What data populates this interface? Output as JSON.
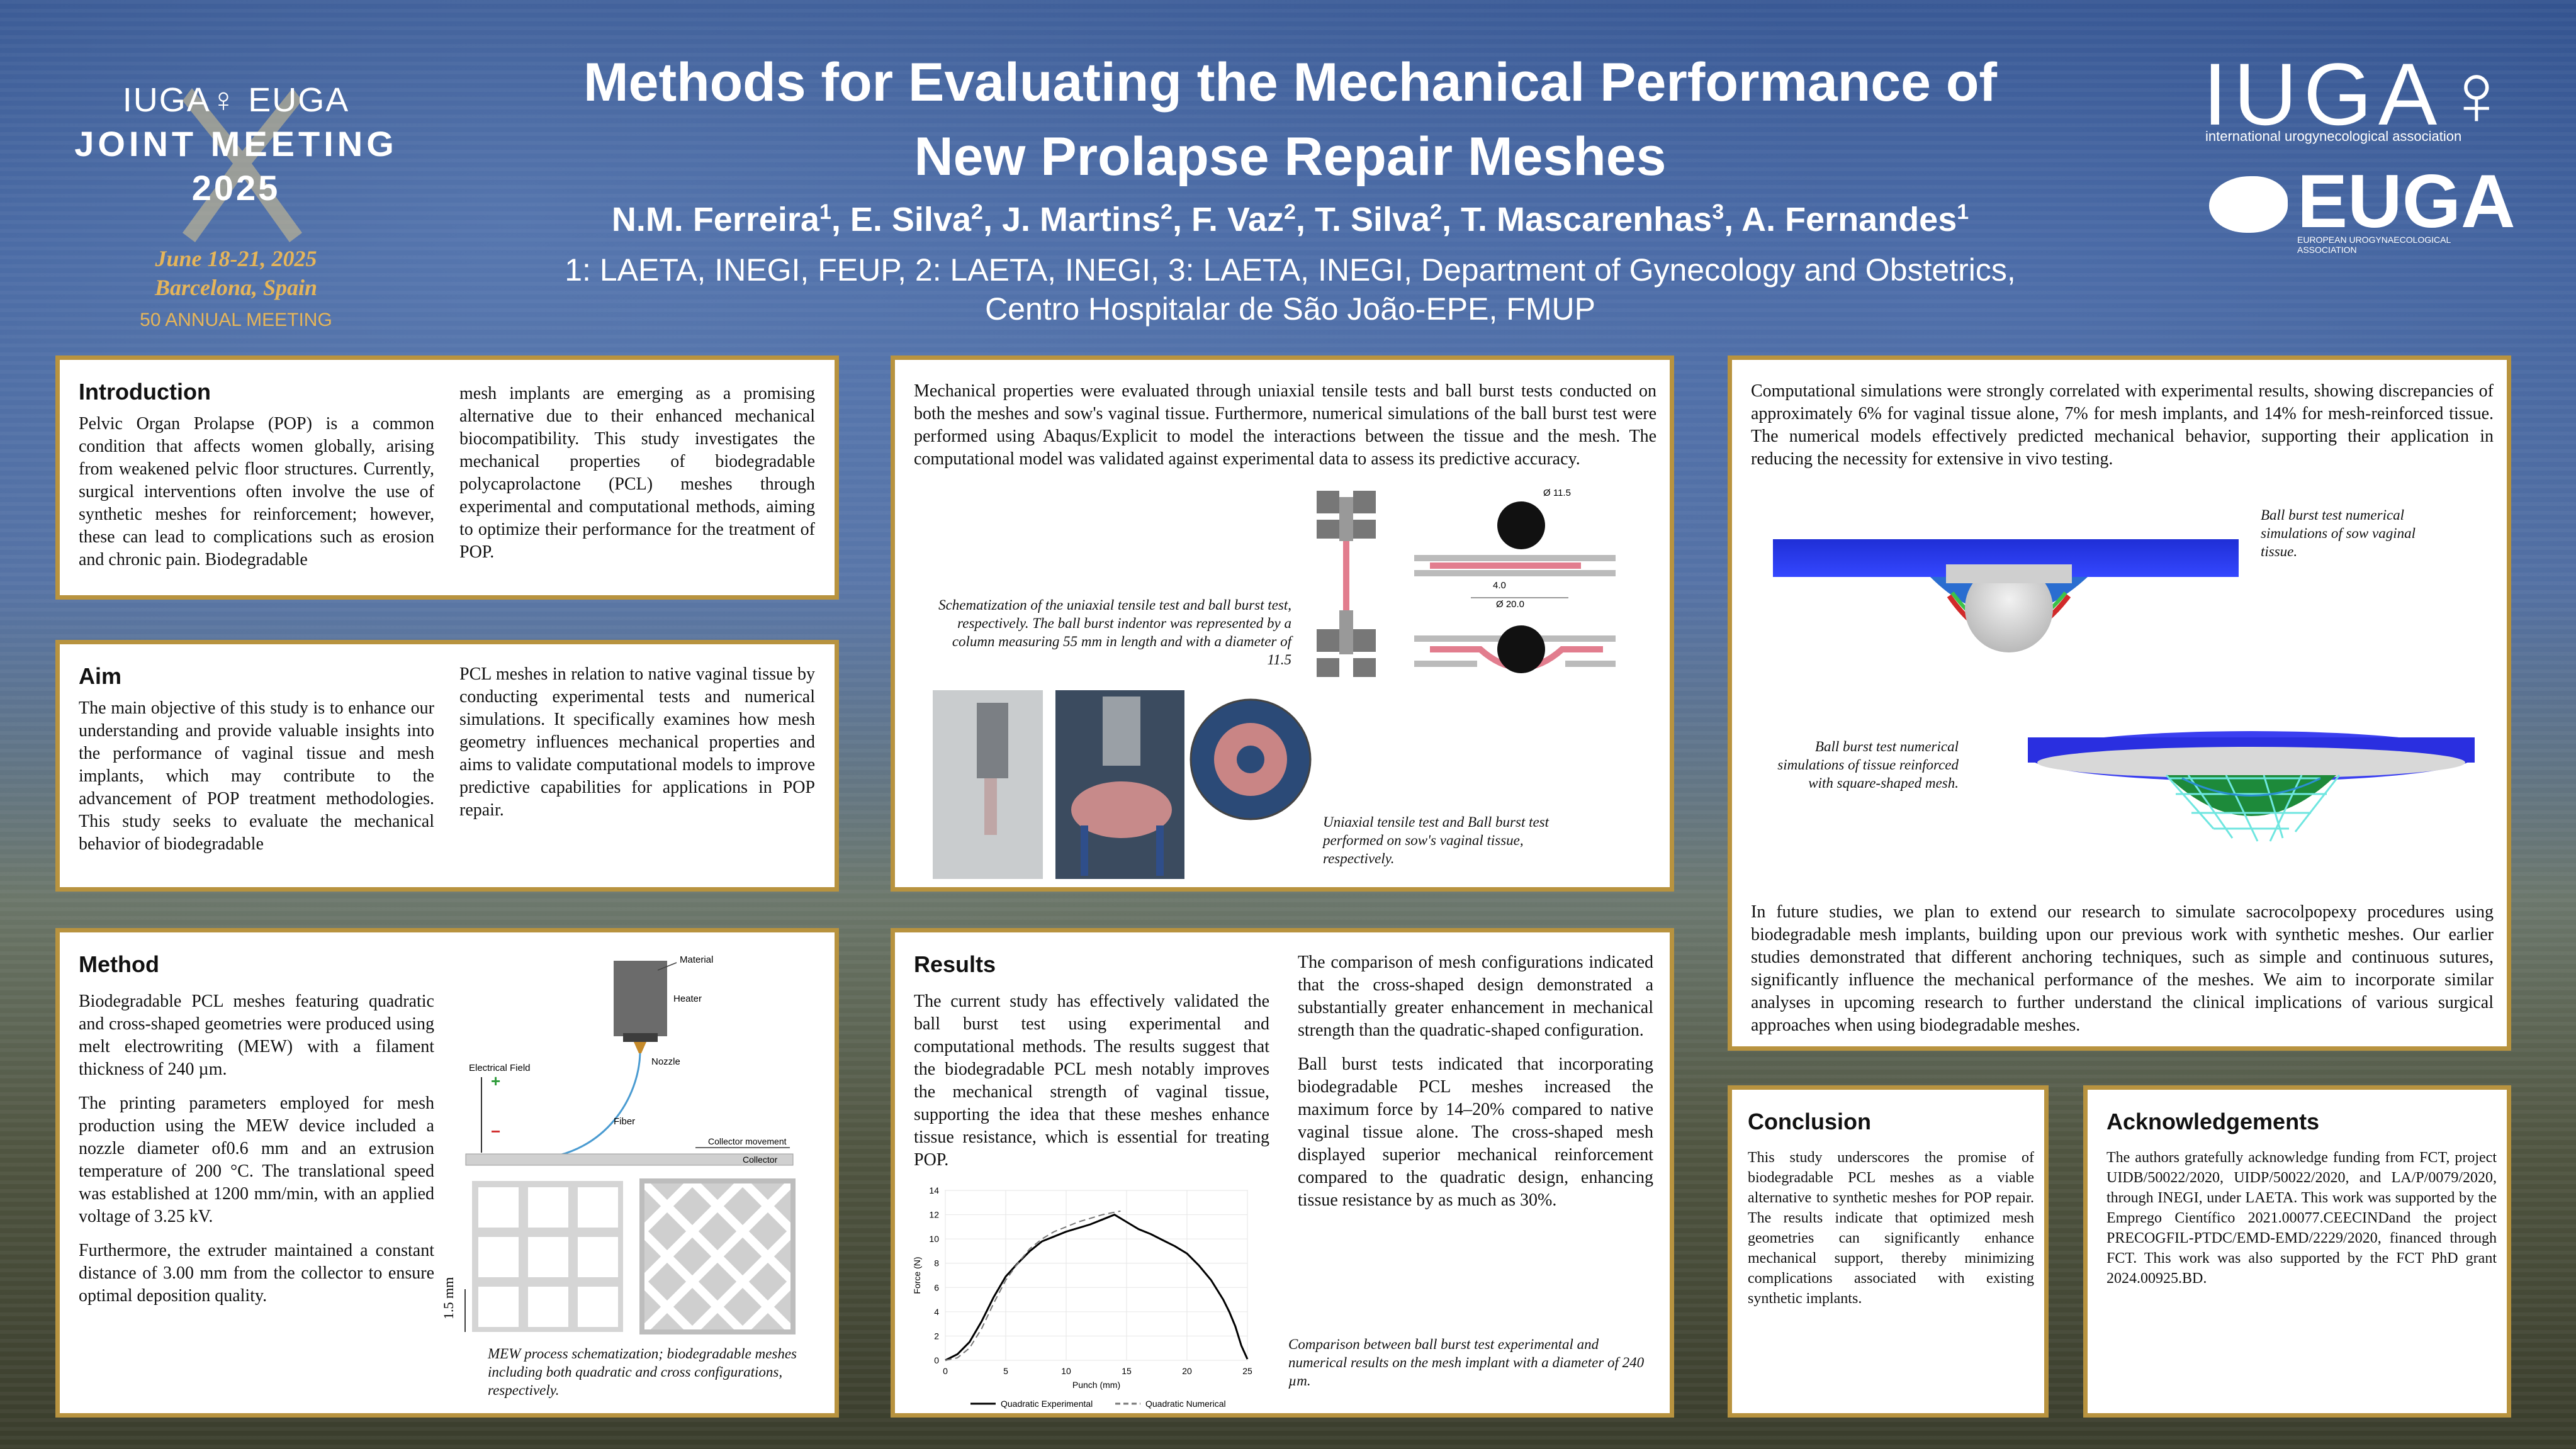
{
  "header": {
    "title_line1": "Methods for Evaluating the Mechanical Performance of",
    "title_line2": "New Prolapse Repair Meshes",
    "authors": [
      {
        "name": "N.M. Ferreira",
        "aff": "1"
      },
      {
        "name": "E. Silva",
        "aff": "2"
      },
      {
        "name": "J. Martins",
        "aff": "2"
      },
      {
        "name": "F. Vaz",
        "aff": "2"
      },
      {
        "name": "T. Silva",
        "aff": "2"
      },
      {
        "name": "T. Mascarenhas",
        "aff": "3"
      },
      {
        "name": "A. Fernandes",
        "aff": "1"
      }
    ],
    "affiliations_line1": "1: LAETA, INEGI, FEUP, 2: LAETA, INEGI, 3: LAETA, INEGI, Department of Gynecology and Obstetrics,",
    "affiliations_line2": "Centro Hospitalar de São João-EPE, FMUP"
  },
  "logos": {
    "joint_meeting": {
      "top": "IUGA♀ EUGA",
      "line2": "JOINT MEETING",
      "year": "2025",
      "dates": "June 18-21, 2025",
      "place": "Barcelona, Spain",
      "anniversary": "50 ANNUAL MEETING"
    },
    "iuga": {
      "name": "IUGA♀",
      "subtitle": "international urogynecological association"
    },
    "euga": {
      "name": "EUGA",
      "subtitle": "EUROPEAN UROGYNAECOLOGICAL ASSOCIATION"
    }
  },
  "introduction": {
    "heading": "Introduction",
    "col1": "Pelvic Organ Prolapse (POP) is a common condition that affects women globally, arising from weakened pelvic floor structures. Currently, surgical interventions often involve the use of synthetic meshes for reinforcement; however, these can lead to complications such as erosion and chronic pain. Biodegradable",
    "col2": "mesh implants are emerging as a promising alternative due to their enhanced mechanical biocompatibility. This study investigates the mechanical properties of biodegradable polycaprolactone (PCL) meshes through experimental and computational methods, aiming to optimize their performance for the treatment of POP."
  },
  "aim": {
    "heading": "Aim",
    "col1": "The main objective of this study is to enhance our understanding and provide valuable insights into the performance of vaginal tissue and mesh implants, which may contribute to the advancement of POP treatment methodologies. This study seeks to evaluate the mechanical behavior of biodegradable",
    "col2": "PCL meshes in relation to native vaginal tissue by conducting experimental tests and numerical simulations. It specifically examines how mesh geometry influences mechanical properties and aims to validate computational models to improve predictive capabilities for applications in POP repair."
  },
  "method": {
    "heading": "Method",
    "p1": "Biodegradable PCL meshes featuring quadratic and cross-shaped geometries were produced using melt electrowriting (MEW) with a filament thickness of 240 µm.",
    "p2": "The printing parameters employed for mesh production using the MEW device included a nozzle diameter of0.6 mm and an extrusion temperature of 200 °C. The translational speed was established at 1200 mm/min, with an applied voltage of 3.25 kV.",
    "p3": "Furthermore, the extruder maintained a constant distance of 3.00 mm from the collector to ensure optimal deposition quality.",
    "diagram": {
      "material": "Material",
      "heater": "Heater",
      "nozzle": "Nozzle",
      "electrical_field": "Electrical Field",
      "fiber": "Fiber",
      "collector_movement": "Collector movement",
      "collector": "Collector",
      "plus": "+",
      "minus": "−",
      "scale": "1.5 mm"
    },
    "caption": "MEW process schematization; biodegradable meshes including both quadratic and cross configurations, respectively."
  },
  "middle_top": {
    "text": "Mechanical properties were evaluated through uniaxial tensile tests and ball burst tests conducted on both the meshes and sow's vaginal tissue. Furthermore, numerical simulations of the ball burst test were performed using Abaqus/Explicit to model the interactions between the tissue and the mesh. The computational model was validated against experimental data to assess its predictive accuracy.",
    "caption1": "Schematization of the uniaxial tensile test and ball burst test, respectively. The ball burst indentor was represented by a column measuring 55 mm in length and with a diameter of 11.5",
    "dim_ball": "Ø 11.5",
    "dim_gap": "4.0",
    "dim_hole": "Ø 20.0",
    "caption2": "Uniaxial tensile test and Ball burst test performed on sow's vaginal tissue, respectively."
  },
  "results": {
    "heading": "Results",
    "col1": "The current study has effectively validated the ball burst test using experimental and computational methods. The results suggest that the biodegradable PCL mesh notably improves the mechanical strength of vaginal tissue, supporting the idea that these meshes enhance tissue resistance, which is essential for treating POP.",
    "col2_p1": "The comparison of mesh configurations indicated that the cross-shaped design demonstrated a substantially greater enhancement in mechanical strength than the quadratic-shaped configuration.",
    "col2_p2": "Ball burst tests indicated that incorporating biodegradable PCL meshes increased the maximum force by 14–20% compared to native vaginal tissue alone. The cross-shaped mesh displayed superior mechanical reinforcement compared to the quadratic design, enhancing tissue resistance by as much as 30%.",
    "caption": "Comparison between ball burst test experimental and numerical results on the mesh implant with a diameter of 240 µm."
  },
  "right_top": {
    "text": "Computational simulations were strongly correlated with experimental results, showing discrepancies of approximately 6% for vaginal tissue alone, 7% for mesh implants, and 14% for mesh-reinforced tissue. The numerical models effectively predicted mechanical behavior, supporting their application in reducing the necessity for extensive in vivo testing.",
    "caption1": "Ball burst test numerical simulations of sow vaginal tissue.",
    "caption2": "Ball burst test numerical simulations of tissue reinforced with square-shaped mesh.",
    "future": "In future studies, we plan to extend our research to simulate sacrocolpopexy procedures using biodegradable mesh implants, building upon our previous work with synthetic meshes. Our earlier studies demonstrated that different anchoring techniques, such as simple and continuous sutures, significantly influence the mechanical performance of the meshes. We aim to incorporate similar analyses in upcoming research to further understand the clinical implications of various surgical approaches when using biodegradable meshes."
  },
  "conclusion": {
    "heading": "Conclusion",
    "text": "This study underscores the promise of biodegradable PCL meshes as a viable alternative to synthetic meshes for POP repair. The results indicate that optimized mesh geometries can significantly enhance mechanical support, thereby minimizing complications associated with existing synthetic implants."
  },
  "acknowledgements": {
    "heading": "Acknowledgements",
    "text": "The authors gratefully acknowledge funding from FCT, project UIDB/50022/2020, UIDP/50022/2020, and LA/P/0079/2020, through INEGI, under LAETA. This work was supported by the Emprego Científico 2021.00077.CEECINDand the project PRECOGFIL-PTDC/EMD-EMD/2229/2020, financed through FCT. This work was also supported by the FCT PhD grant 2024.00925.BD."
  },
  "chart_data": {
    "type": "line",
    "xlabel": "Punch (mm)",
    "ylabel": "Force (N)",
    "xlim": [
      0,
      25
    ],
    "ylim": [
      0,
      14
    ],
    "xticks": [
      0,
      5,
      10,
      15,
      20,
      25
    ],
    "yticks": [
      0,
      2,
      4,
      6,
      8,
      10,
      12,
      14
    ],
    "series": [
      {
        "name": "Quadratic Experimental",
        "style": "solid",
        "x": [
          0,
          1,
          2,
          3,
          4,
          5,
          6,
          7,
          8,
          9,
          10,
          11,
          12,
          13,
          14,
          15,
          16,
          17,
          18,
          19,
          20,
          21,
          22,
          23,
          23.5,
          24,
          24.5,
          25
        ],
        "y": [
          0,
          0.5,
          1.5,
          3.2,
          5.2,
          6.9,
          8.0,
          9.0,
          9.8,
          10.2,
          10.6,
          10.9,
          11.2,
          11.6,
          12.0,
          11.4,
          10.8,
          10.4,
          9.9,
          9.4,
          8.8,
          7.8,
          6.6,
          5.0,
          4.0,
          2.8,
          1.2,
          0.1
        ]
      },
      {
        "name": "Quadratic Numerical",
        "style": "dashed",
        "x": [
          0,
          1,
          2,
          3,
          4,
          5,
          6,
          7,
          8,
          9,
          10,
          11,
          12,
          13,
          14,
          14.5
        ],
        "y": [
          0,
          0.2,
          1.0,
          2.6,
          4.7,
          6.6,
          8.0,
          9.2,
          10.0,
          10.6,
          11.0,
          11.4,
          11.7,
          12.0,
          12.2,
          12.3
        ]
      }
    ]
  }
}
